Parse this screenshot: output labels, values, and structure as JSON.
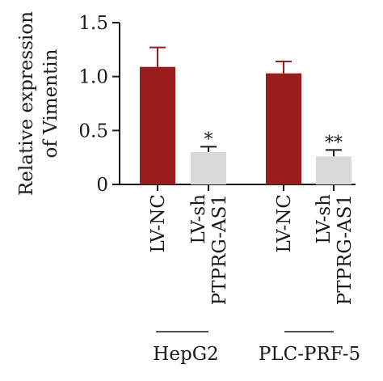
{
  "chart_data": {
    "type": "bar",
    "ylabel_line1": "Relative expression",
    "ylabel_line2": "of Vimentin",
    "ylim": [
      0,
      1.5
    ],
    "yticks": [
      "0",
      "0.5",
      "1.0",
      "1.5"
    ],
    "yticks_values": [
      0,
      0.5,
      1.0,
      1.5
    ],
    "groups": [
      {
        "name": "HepG2",
        "bars": [
          {
            "label": "LV-NC",
            "value": 1.09,
            "error": 0.18,
            "color": "#9b1c1c",
            "sig": ""
          },
          {
            "label_line1": "LV-sh",
            "label_line2": "PTPRG-AS1",
            "value": 0.3,
            "error": 0.05,
            "color": "#d9d9d9",
            "sig": "*"
          }
        ]
      },
      {
        "name": "PLC-PRF-5",
        "bars": [
          {
            "label": "LV-NC",
            "value": 1.03,
            "error": 0.11,
            "color": "#9b1c1c",
            "sig": ""
          },
          {
            "label_line1": "LV-sh",
            "label_line2": "PTPRG-AS1",
            "value": 0.26,
            "error": 0.06,
            "color": "#d9d9d9",
            "sig": "**"
          }
        ]
      }
    ]
  }
}
